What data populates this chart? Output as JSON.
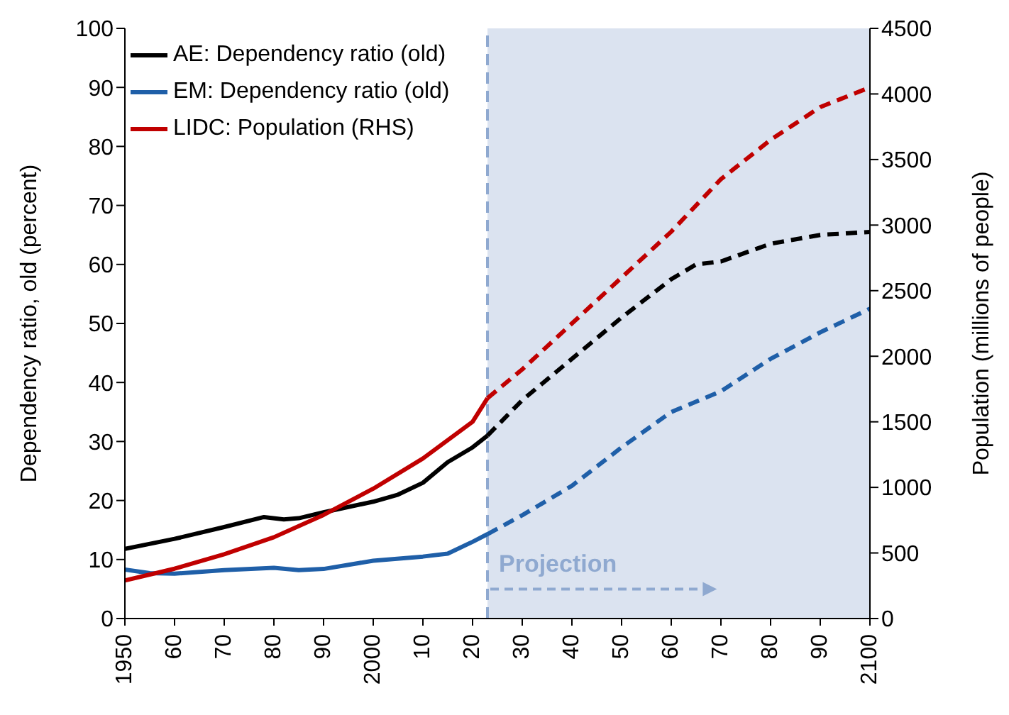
{
  "chart_data": {
    "type": "line",
    "ylabel": "Dependency ratio, old (percent)",
    "y2label": "Population (millions of people)",
    "xlim": [
      1950,
      2100
    ],
    "xticks": [
      1950,
      {
        "value": 1960,
        "label": "60"
      },
      {
        "value": 1970,
        "label": "70"
      },
      {
        "value": 1980,
        "label": "80"
      },
      {
        "value": 1990,
        "label": "90"
      },
      2000,
      {
        "value": 2010,
        "label": "10"
      },
      {
        "value": 2020,
        "label": "20"
      },
      {
        "value": 2030,
        "label": "30"
      },
      {
        "value": 2040,
        "label": "40"
      },
      {
        "value": 2050,
        "label": "50"
      },
      {
        "value": 2060,
        "label": "60"
      },
      {
        "value": 2070,
        "label": "70"
      },
      {
        "value": 2080,
        "label": "80"
      },
      {
        "value": 2090,
        "label": "90"
      },
      2100
    ],
    "ylim": [
      0,
      100
    ],
    "yticks": [
      0,
      10,
      20,
      30,
      40,
      50,
      60,
      70,
      80,
      90,
      100
    ],
    "y2lim": [
      0,
      4500
    ],
    "y2ticks": [
      0,
      500,
      1000,
      1500,
      2000,
      2500,
      3000,
      3500,
      4000,
      4500
    ],
    "grid": false,
    "legend": "top left",
    "marker": "none",
    "series": [
      {
        "name": "AE: Dependency ratio (old)",
        "color": "#000000",
        "line_style": "solid",
        "x": [
          1950,
          1960,
          1970,
          1978,
          1982,
          1985,
          1990,
          2000,
          2005,
          2010,
          2015,
          2020,
          2023
        ],
        "values": [
          11.8,
          13.5,
          15.5,
          17.2,
          16.8,
          17,
          18,
          19.8,
          21,
          23,
          26.5,
          29,
          31
        ]
      },
      {
        "name": "EM: Dependency ratio (old)",
        "color": "#1f5fa8",
        "line_style": "solid",
        "x": [
          1950,
          1955,
          1960,
          1970,
          1980,
          1985,
          1990,
          2000,
          2010,
          2015,
          2020,
          2023
        ],
        "values": [
          8.3,
          7.7,
          7.6,
          8.2,
          8.6,
          8.2,
          8.4,
          9.8,
          10.5,
          11,
          13,
          14.3
        ]
      },
      {
        "name": "LIDC: Population (RHS)",
        "color": "#c00000",
        "line_style": "solid",
        "axis": "y2",
        "x": [
          1950,
          1960,
          1970,
          1980,
          1990,
          2000,
          2010,
          2020,
          2023
        ],
        "values": [
          290,
          380,
          490,
          620,
          790,
          990,
          1220,
          1500,
          1680
        ]
      },
      {
        "color": "#000000",
        "line_style": "dashed",
        "x": [
          2023,
          2030,
          2040,
          2050,
          2060,
          2065,
          2070,
          2080,
          2090,
          2100
        ],
        "values": [
          31,
          37,
          44,
          51,
          57.5,
          60,
          60.5,
          63.5,
          65,
          65.5
        ]
      },
      {
        "color": "#1f5fa8",
        "line_style": "dashed",
        "x": [
          2023,
          2030,
          2040,
          2050,
          2060,
          2070,
          2080,
          2090,
          2100
        ],
        "values": [
          14.3,
          17.5,
          22.5,
          29,
          35,
          38.5,
          44,
          48.5,
          52.5
        ]
      },
      {
        "color": "#c00000",
        "line_style": "dashed",
        "axis": "y2",
        "x": [
          2023,
          2030,
          2040,
          2050,
          2060,
          2070,
          2080,
          2090,
          2100
        ],
        "values": [
          1680,
          1900,
          2250,
          2600,
          2950,
          3350,
          3650,
          3900,
          4050
        ]
      }
    ],
    "bands": [
      {
        "axis": "x",
        "from": 2023,
        "to": 2100,
        "color": "#dbe3f0"
      }
    ],
    "ref_lines": [
      {
        "axis": "x",
        "value": 2023,
        "color": "#8fa9d0",
        "line_style": "dashed"
      }
    ],
    "annotations": [
      {
        "text": "Projection",
        "x": 2023,
        "y": 5
      }
    ]
  }
}
